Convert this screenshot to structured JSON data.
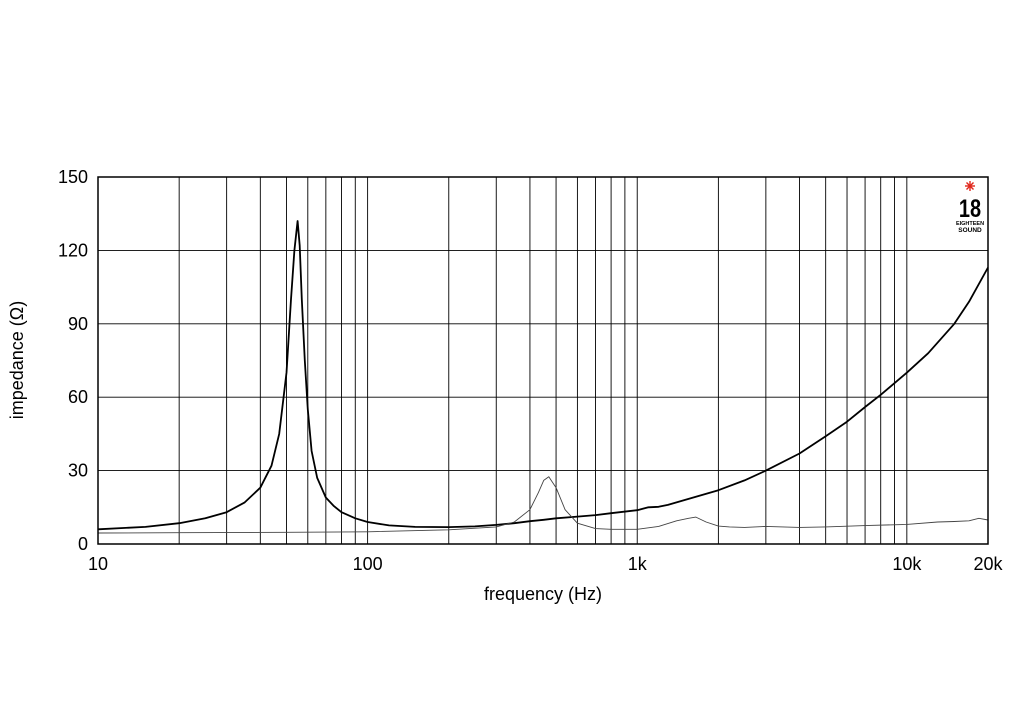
{
  "chart_data": {
    "type": "line",
    "xlabel": "frequency (Hz)",
    "ylabel": "impedance (Ω)",
    "xscale": "log",
    "xlim": [
      10,
      20000
    ],
    "ylim": [
      0,
      150
    ],
    "grid": true,
    "x_ticks": [
      {
        "value": 10,
        "label": "10"
      },
      {
        "value": 100,
        "label": "100"
      },
      {
        "value": 1000,
        "label": "1k"
      },
      {
        "value": 10000,
        "label": "10k"
      },
      {
        "value": 20000,
        "label": "20k"
      }
    ],
    "y_ticks": [
      {
        "value": 0,
        "label": "0"
      },
      {
        "value": 30,
        "label": "30"
      },
      {
        "value": 60,
        "label": "60"
      },
      {
        "value": 90,
        "label": "90"
      },
      {
        "value": 120,
        "label": "120"
      },
      {
        "value": 150,
        "label": "150"
      }
    ],
    "series": [
      {
        "color": "#000000",
        "style": "thick",
        "x": [
          10,
          15,
          20,
          25,
          30,
          35,
          40,
          44,
          47,
          50,
          52,
          53.5,
          55,
          56,
          57,
          58.5,
          60,
          62,
          65,
          70,
          75,
          80,
          90,
          100,
          120,
          150,
          200,
          250,
          300,
          350,
          400,
          450,
          500,
          600,
          700,
          800,
          1000,
          1100,
          1200,
          1300,
          1500,
          2000,
          2500,
          3000,
          4000,
          5000,
          6000,
          7000,
          8000,
          10000,
          12000,
          15000,
          17000,
          20000
        ],
        "y": [
          6,
          7,
          8.5,
          10.5,
          13,
          17,
          23,
          32,
          45,
          70,
          100,
          120,
          132,
          122,
          100,
          75,
          55,
          38,
          27,
          19,
          15.5,
          13,
          10.5,
          9,
          7.6,
          7,
          6.9,
          7.2,
          7.8,
          8.5,
          9.3,
          9.9,
          10.5,
          11.2,
          11.8,
          12.6,
          13.8,
          15,
          15.2,
          16,
          18,
          22,
          26,
          30,
          37,
          44,
          50,
          56,
          61,
          70,
          78,
          90,
          99,
          113
        ]
      },
      {
        "color": "#444444",
        "style": "thin",
        "x": [
          10,
          20,
          50,
          100,
          200,
          300,
          350,
          400,
          430,
          450,
          470,
          500,
          540,
          600,
          700,
          800,
          1000,
          1200,
          1400,
          1550,
          1650,
          1800,
          2000,
          2200,
          2500,
          3000,
          4000,
          5000,
          7000,
          10000,
          13000,
          15000,
          17000,
          18500,
          20000
        ],
        "y": [
          4.5,
          4.6,
          4.8,
          5,
          5.8,
          7,
          9,
          14,
          21,
          26,
          27.5,
          23,
          14,
          8.5,
          6.3,
          6,
          6,
          7.2,
          9.5,
          10.5,
          11,
          9,
          7.3,
          7,
          6.8,
          7.2,
          6.8,
          7,
          7.5,
          8,
          9,
          9.2,
          9.5,
          10.5,
          9.8
        ]
      }
    ]
  }
}
